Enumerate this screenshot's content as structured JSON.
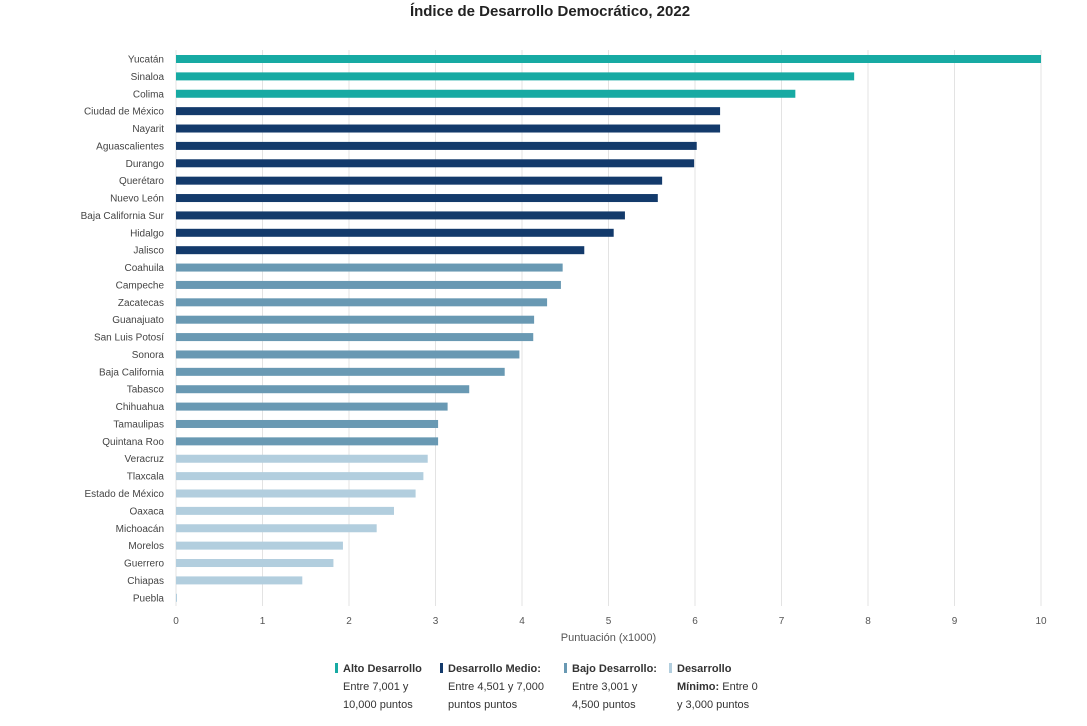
{
  "chart_data": {
    "type": "bar",
    "orientation": "horizontal",
    "title": "Índice de Desarrollo Democrático, 2022",
    "xlabel": "Puntuación (x1000)",
    "ylabel": "",
    "xlim": [
      0,
      10
    ],
    "xticks": [
      0,
      1,
      2,
      3,
      4,
      5,
      6,
      7,
      8,
      9,
      10
    ],
    "grid": true,
    "categories": [
      "Yucatán",
      "Sinaloa",
      "Colima",
      "Ciudad de México",
      "Nayarit",
      "Aguascalientes",
      "Durango",
      "Querétaro",
      "Nuevo León",
      "Baja California Sur",
      "Hidalgo",
      "Jalisco",
      "Coahuila",
      "Campeche",
      "Zacatecas",
      "Guanajuato",
      "San Luis Potosí",
      "Sonora",
      "Baja California",
      "Tabasco",
      "Chihuahua",
      "Tamaulipas",
      "Quintana Roo",
      "Veracruz",
      "Tlaxcala",
      "Estado de México",
      "Oaxaca",
      "Michoacán",
      "Morelos",
      "Guerrero",
      "Chiapas",
      "Puebla"
    ],
    "values": [
      10.0,
      7.84,
      7.16,
      6.29,
      6.29,
      6.02,
      5.99,
      5.62,
      5.57,
      5.19,
      5.06,
      4.72,
      4.47,
      4.45,
      4.29,
      4.14,
      4.13,
      3.97,
      3.8,
      3.39,
      3.14,
      3.03,
      3.03,
      2.91,
      2.86,
      2.77,
      2.52,
      2.32,
      1.93,
      1.82,
      1.46,
      0.01
    ],
    "legend_position": "bottom",
    "legend": [
      {
        "title": "Alto Desarrollo",
        "lines": [
          "Entre 7,001 y",
          "10,000 puntos"
        ],
        "color": "#17aaa3"
      },
      {
        "title": "Desarrollo Medio:",
        "lines": [
          "Entre 4,501 y 7,000",
          "puntos puntos"
        ],
        "color": "#133a6b"
      },
      {
        "title": "Bajo Desarrollo:",
        "lines": [
          "Entre 3,001 y",
          "4,500 puntos"
        ],
        "color": "#6999b3"
      },
      {
        "title": "Desarrollo",
        "title2": "Mínimo:",
        "lines": [
          "Entre 0",
          "y 3,000 puntos"
        ],
        "color": "#b2cede"
      }
    ]
  }
}
